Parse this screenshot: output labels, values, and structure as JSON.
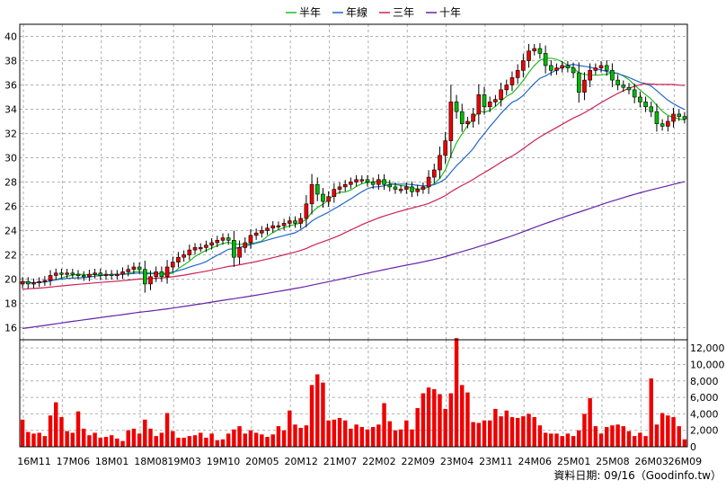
{
  "chart_data": {
    "type": "candlestick",
    "legend": {
      "placement": "top-center",
      "items": [
        {
          "name": "半年",
          "color": "#22bb22"
        },
        {
          "name": "年線",
          "color": "#2266cc"
        },
        {
          "name": "三年",
          "color": "#cc2255"
        },
        {
          "name": "十年",
          "color": "#6622aa"
        }
      ]
    },
    "grid": true,
    "price_axis": {
      "ylim": [
        15,
        41
      ],
      "ticks": [
        16,
        18,
        20,
        22,
        24,
        26,
        28,
        30,
        32,
        34,
        36,
        38,
        40
      ]
    },
    "volume_axis": {
      "ylim": [
        0,
        13000
      ],
      "ticks": [
        0,
        2000,
        4000,
        6000,
        8000,
        10000,
        12000
      ],
      "tick_labels": [
        "0",
        "2,000",
        "4,000",
        "6,000",
        "8,000",
        "10,000",
        "12,000"
      ]
    },
    "time_axis": {
      "n_periods": 120,
      "ticks": [
        {
          "index": 0,
          "label": "16M11"
        },
        {
          "index": 7,
          "label": "17M06"
        },
        {
          "index": 14,
          "label": "18M01"
        },
        {
          "index": 21,
          "label": "18M08"
        },
        {
          "index": 27,
          "label": "19M03"
        },
        {
          "index": 34,
          "label": "19M10"
        },
        {
          "index": 41,
          "label": "20M05"
        },
        {
          "index": 48,
          "label": "20M12"
        },
        {
          "index": 55,
          "label": "21M07"
        },
        {
          "index": 62,
          "label": "22M02"
        },
        {
          "index": 69,
          "label": "22M09"
        },
        {
          "index": 76,
          "label": "23M04"
        },
        {
          "index": 83,
          "label": "23M11"
        },
        {
          "index": 90,
          "label": "24M06"
        },
        {
          "index": 97,
          "label": "25M01"
        },
        {
          "index": 104,
          "label": "25M08"
        },
        {
          "index": 111,
          "label": "26M03"
        },
        {
          "index": 117,
          "label": "26M09"
        }
      ]
    },
    "footer": "資料日期: 09/16（Goodinfo.tw）",
    "close": [
      19.8,
      19.6,
      19.7,
      19.8,
      19.9,
      20.3,
      20.5,
      20.4,
      20.5,
      20.4,
      20.3,
      20.2,
      20.4,
      20.5,
      20.3,
      20.4,
      20.3,
      20.4,
      20.6,
      20.8,
      21.0,
      20.8,
      19.6,
      20.2,
      20.6,
      20.2,
      21.0,
      21.4,
      21.8,
      22.0,
      22.4,
      22.6,
      22.6,
      22.8,
      23.0,
      23.2,
      23.4,
      23.2,
      21.8,
      22.6,
      23.0,
      23.6,
      23.8,
      24.0,
      24.2,
      24.4,
      24.4,
      24.6,
      24.8,
      24.6,
      25.0,
      26.2,
      27.8,
      27.0,
      26.4,
      26.8,
      27.4,
      27.6,
      27.8,
      28.0,
      28.2,
      28.2,
      28.0,
      27.8,
      28.2,
      27.8,
      27.6,
      27.4,
      27.4,
      27.6,
      27.2,
      27.4,
      27.6,
      28.4,
      29.0,
      30.2,
      31.4,
      34.6,
      33.8,
      32.8,
      33.0,
      33.6,
      35.2,
      34.2,
      34.6,
      34.8,
      35.6,
      36.0,
      36.6,
      37.2,
      38.0,
      38.8,
      39.0,
      38.6,
      37.6,
      37.2,
      37.4,
      37.6,
      37.4,
      37.0,
      35.4,
      36.4,
      37.2,
      37.4,
      37.6,
      37.2,
      36.4,
      36.0,
      35.8,
      35.6,
      35.0,
      34.6,
      34.2,
      33.8,
      32.8,
      32.6,
      33.0,
      33.6,
      33.4,
      33.2
    ],
    "volume": [
      3300,
      1800,
      1600,
      1700,
      1300,
      3800,
      5400,
      3600,
      1900,
      1700,
      4300,
      2200,
      1400,
      1700,
      1100,
      1200,
      1400,
      1000,
      700,
      2000,
      2200,
      1600,
      3300,
      2200,
      1300,
      1700,
      4100,
      1900,
      1100,
      1100,
      1300,
      1400,
      1700,
      1100,
      1600,
      800,
      900,
      1600,
      2100,
      2500,
      1600,
      2000,
      1700,
      1500,
      1200,
      1500,
      2500,
      2000,
      4400,
      2700,
      2300,
      2600,
      7500,
      8800,
      7800,
      3200,
      3300,
      3500,
      3200,
      2200,
      2700,
      2400,
      2100,
      2400,
      2700,
      5300,
      3100,
      2000,
      2100,
      3200,
      2100,
      4700,
      6500,
      7200,
      7000,
      6400,
      4600,
      6500,
      13200,
      7500,
      6600,
      3000,
      2900,
      3200,
      3200,
      4600,
      3700,
      4400,
      3600,
      3500,
      3700,
      4000,
      3600,
      2600,
      1700,
      1600,
      1600,
      1300,
      1600,
      1300,
      2000,
      4000,
      5900,
      2500,
      1600,
      2400,
      2600,
      2700,
      2500,
      1900,
      1300,
      1700,
      1300,
      8300,
      2700,
      4100,
      3800,
      3600,
      2500,
      900
    ]
  }
}
